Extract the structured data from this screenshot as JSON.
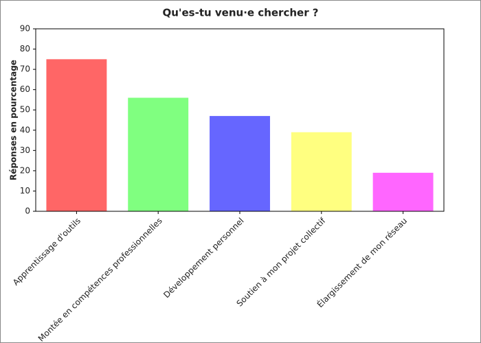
{
  "chart_data": {
    "type": "bar",
    "title": "Qu'es-tu venu·e chercher ?",
    "y_label": "Réponses en pourcentage",
    "categories": [
      "Apprentissage d'outils",
      "Montée en compétences professionnelles",
      "Développement personnel",
      "Soutien à mon projet collectif",
      "Élargissement de mon réseau"
    ],
    "values": [
      75,
      56,
      47,
      39,
      19
    ],
    "colors": [
      "#ff6666",
      "#80ff80",
      "#6666ff",
      "#ffff80",
      "#ff66ff"
    ],
    "ylim": [
      0,
      90
    ],
    "yticks": [
      0,
      10,
      20,
      30,
      40,
      50,
      60,
      70,
      80,
      90
    ],
    "grid": false
  }
}
